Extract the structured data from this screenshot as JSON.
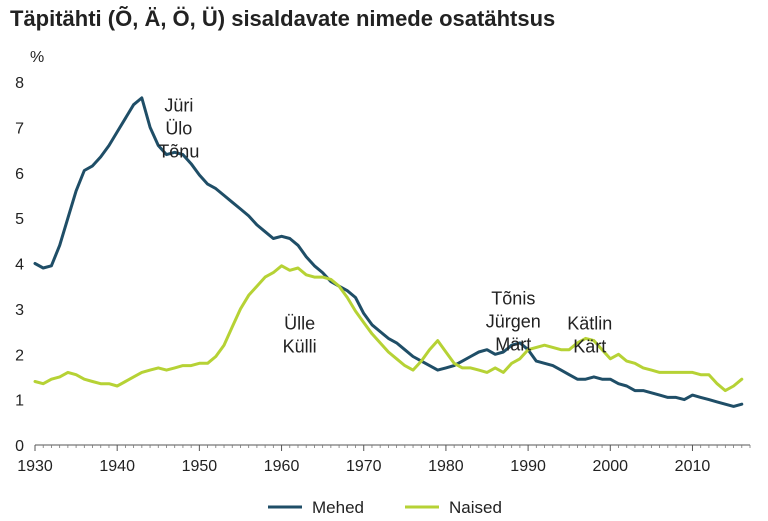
{
  "chart_data": {
    "type": "line",
    "title": "Täpitähti (Õ, Ä, Ö, Ü) sisaldavate nimede osatähtsus",
    "ylabel": "%",
    "xlabel": "",
    "xlim": [
      1930,
      2017
    ],
    "ylim": [
      0,
      8
    ],
    "xticks": [
      1930,
      1940,
      1950,
      1960,
      1970,
      1980,
      1990,
      2000,
      2010
    ],
    "yticks": [
      0,
      1,
      2,
      3,
      4,
      5,
      6,
      7,
      8
    ],
    "grid": false,
    "legend_position": "bottom",
    "series": [
      {
        "name": "Mehed",
        "color": "#1f4e67",
        "x": [
          1930,
          1931,
          1932,
          1933,
          1934,
          1935,
          1936,
          1937,
          1938,
          1939,
          1940,
          1941,
          1942,
          1943,
          1944,
          1945,
          1946,
          1947,
          1948,
          1949,
          1950,
          1951,
          1952,
          1953,
          1954,
          1955,
          1956,
          1957,
          1958,
          1959,
          1960,
          1961,
          1962,
          1963,
          1964,
          1965,
          1966,
          1967,
          1968,
          1969,
          1970,
          1971,
          1972,
          1973,
          1974,
          1975,
          1976,
          1977,
          1978,
          1979,
          1980,
          1981,
          1982,
          1983,
          1984,
          1985,
          1986,
          1987,
          1988,
          1989,
          1990,
          1991,
          1992,
          1993,
          1994,
          1995,
          1996,
          1997,
          1998,
          1999,
          2000,
          2001,
          2002,
          2003,
          2004,
          2005,
          2006,
          2007,
          2008,
          2009,
          2010,
          2011,
          2012,
          2013,
          2014,
          2015,
          2016
        ],
        "values": [
          4.0,
          3.9,
          3.95,
          4.4,
          5.0,
          5.6,
          6.05,
          6.15,
          6.35,
          6.6,
          6.9,
          7.2,
          7.5,
          7.65,
          7.0,
          6.6,
          6.4,
          6.45,
          6.4,
          6.2,
          5.95,
          5.75,
          5.65,
          5.5,
          5.35,
          5.2,
          5.05,
          4.85,
          4.7,
          4.55,
          4.6,
          4.55,
          4.4,
          4.15,
          3.95,
          3.8,
          3.6,
          3.5,
          3.4,
          3.25,
          2.9,
          2.65,
          2.5,
          2.35,
          2.25,
          2.1,
          1.95,
          1.85,
          1.75,
          1.65,
          1.7,
          1.75,
          1.85,
          1.95,
          2.05,
          2.1,
          2.0,
          2.05,
          2.2,
          2.25,
          2.1,
          1.85,
          1.8,
          1.75,
          1.65,
          1.55,
          1.45,
          1.45,
          1.5,
          1.45,
          1.45,
          1.35,
          1.3,
          1.2,
          1.2,
          1.15,
          1.1,
          1.05,
          1.05,
          1.0,
          1.1,
          1.05,
          1.0,
          0.95,
          0.9,
          0.85,
          0.9
        ]
      },
      {
        "name": "Naised",
        "color": "#b6d235",
        "x": [
          1930,
          1931,
          1932,
          1933,
          1934,
          1935,
          1936,
          1937,
          1938,
          1939,
          1940,
          1941,
          1942,
          1943,
          1944,
          1945,
          1946,
          1947,
          1948,
          1949,
          1950,
          1951,
          1952,
          1953,
          1954,
          1955,
          1956,
          1957,
          1958,
          1959,
          1960,
          1961,
          1962,
          1963,
          1964,
          1965,
          1966,
          1967,
          1968,
          1969,
          1970,
          1971,
          1972,
          1973,
          1974,
          1975,
          1976,
          1977,
          1978,
          1979,
          1980,
          1981,
          1982,
          1983,
          1984,
          1985,
          1986,
          1987,
          1988,
          1989,
          1990,
          1991,
          1992,
          1993,
          1994,
          1995,
          1996,
          1997,
          1998,
          1999,
          2000,
          2001,
          2002,
          2003,
          2004,
          2005,
          2006,
          2007,
          2008,
          2009,
          2010,
          2011,
          2012,
          2013,
          2014,
          2015,
          2016
        ],
        "values": [
          1.4,
          1.35,
          1.45,
          1.5,
          1.6,
          1.55,
          1.45,
          1.4,
          1.35,
          1.35,
          1.3,
          1.4,
          1.5,
          1.6,
          1.65,
          1.7,
          1.65,
          1.7,
          1.75,
          1.75,
          1.8,
          1.8,
          1.95,
          2.2,
          2.6,
          3.0,
          3.3,
          3.5,
          3.7,
          3.8,
          3.95,
          3.85,
          3.9,
          3.75,
          3.7,
          3.7,
          3.65,
          3.5,
          3.25,
          2.95,
          2.7,
          2.45,
          2.25,
          2.05,
          1.9,
          1.75,
          1.65,
          1.85,
          2.1,
          2.3,
          2.05,
          1.8,
          1.7,
          1.7,
          1.65,
          1.6,
          1.7,
          1.6,
          1.8,
          1.9,
          2.1,
          2.15,
          2.2,
          2.15,
          2.1,
          2.1,
          2.25,
          2.35,
          2.3,
          2.1,
          1.9,
          2.0,
          1.85,
          1.8,
          1.7,
          1.65,
          1.6,
          1.6,
          1.6,
          1.6,
          1.6,
          1.55,
          1.55,
          1.35,
          1.2,
          1.3,
          1.45
        ]
      }
    ],
    "annotations": [
      {
        "lines": [
          "Jüri",
          "Ülo",
          "Tõnu"
        ],
        "x": 1947.5,
        "y": 7.35
      },
      {
        "lines": [
          "Ülle",
          "Külli"
        ],
        "x": 1962.2,
        "y": 2.55
      },
      {
        "lines": [
          "Tõnis",
          "Jürgen",
          "Märt"
        ],
        "x": 1988.2,
        "y": 3.1
      },
      {
        "lines": [
          "Kätlin",
          "Kärt"
        ],
        "x": 1997.5,
        "y": 2.55
      }
    ]
  }
}
